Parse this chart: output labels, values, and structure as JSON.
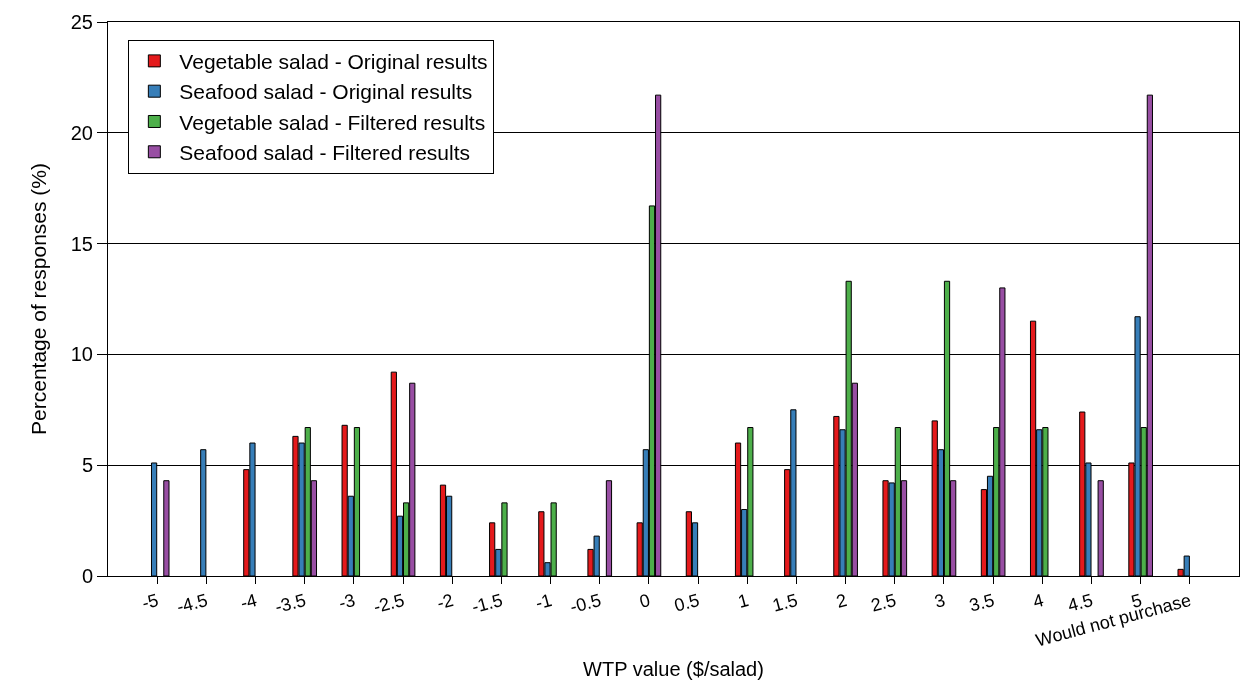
{
  "chart_data": {
    "type": "bar",
    "xlabel": "WTP value ($/salad)",
    "ylabel": "Percentage of responses (%)",
    "categories": [
      "-5",
      "-4.5",
      "-4",
      "-3.5",
      "-3",
      "-2.5",
      "-2",
      "-1.5",
      "-1",
      "-0.5",
      "0",
      "0.5",
      "1",
      "1.5",
      "2",
      "2.5",
      "3",
      "3.5",
      "4",
      "4.5",
      "5",
      "Would not purchase"
    ],
    "series": [
      {
        "name": "Vegetable salad - Original results",
        "color": "#e41a1c",
        "values": [
          null,
          null,
          4.8,
          6.3,
          6.8,
          9.2,
          4.1,
          2.4,
          2.9,
          1.2,
          2.4,
          2.9,
          6.0,
          4.8,
          7.2,
          4.3,
          7.0,
          3.9,
          11.5,
          7.4,
          5.1,
          0.3
        ]
      },
      {
        "name": "Seafood salad - Original results",
        "color": "#377eb8",
        "values": [
          5.1,
          5.7,
          6.0,
          6.0,
          3.6,
          2.7,
          3.6,
          1.2,
          0.6,
          1.8,
          5.7,
          2.4,
          3.0,
          7.5,
          6.6,
          4.2,
          5.7,
          4.5,
          6.6,
          5.1,
          11.7,
          0.9
        ]
      },
      {
        "name": "Vegetable salad - Filtered results",
        "color": "#4daf4a",
        "values": [
          null,
          null,
          null,
          6.7,
          6.7,
          3.3,
          null,
          3.3,
          3.3,
          null,
          16.7,
          null,
          6.7,
          null,
          13.3,
          6.7,
          13.3,
          6.7,
          6.7,
          null,
          6.7,
          null
        ]
      },
      {
        "name": "Seafood salad - Filtered results",
        "color": "#984ea3",
        "values": [
          4.3,
          null,
          null,
          4.3,
          null,
          8.7,
          null,
          null,
          null,
          4.3,
          21.7,
          null,
          null,
          null,
          8.7,
          4.3,
          4.3,
          13.0,
          null,
          4.3,
          21.7,
          null
        ]
      }
    ],
    "ylim": [
      0,
      25
    ],
    "yticks": [
      0,
      5,
      10,
      15,
      20,
      25
    ],
    "grid": "y",
    "legend": "top left"
  }
}
